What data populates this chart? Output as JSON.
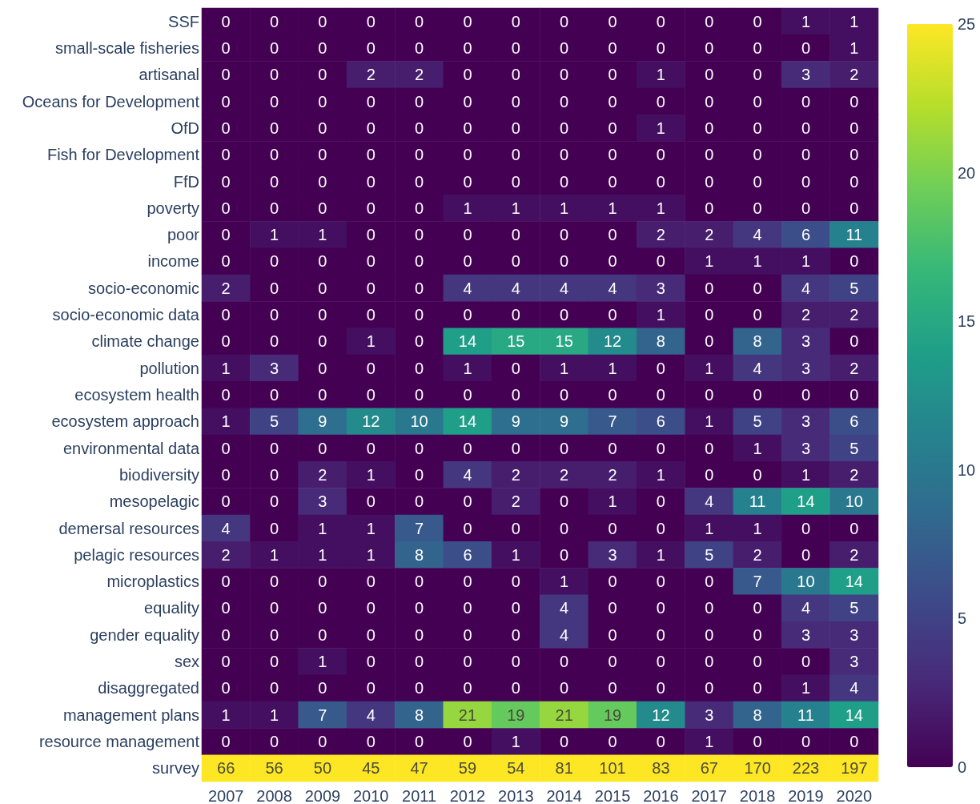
{
  "chart_data": {
    "type": "heatmap",
    "categories": [
      "2007",
      "2008",
      "2009",
      "2010",
      "2011",
      "2012",
      "2013",
      "2014",
      "2015",
      "2016",
      "2017",
      "2018",
      "2019",
      "2020"
    ],
    "y_categories": [
      "SSF",
      "small-scale fisheries",
      "artisanal",
      "Oceans for Development",
      "OfD",
      "Fish for Development",
      "FfD",
      "poverty",
      "poor",
      "income",
      "socio-economic",
      "socio-economic data",
      "climate change",
      "pollution",
      "ecosystem health",
      "ecosystem approach",
      "environmental data",
      "biodiversity",
      "mesopelagic",
      "demersal resources",
      "pelagic resources",
      "microplastics",
      "equality",
      "gender equality",
      "sex",
      "disaggregated",
      "management plans",
      "resource management",
      "survey"
    ],
    "cells": [
      [
        0,
        0,
        0,
        0,
        0,
        0,
        0,
        0,
        0,
        0,
        0,
        0,
        1,
        1
      ],
      [
        0,
        0,
        0,
        0,
        0,
        0,
        0,
        0,
        0,
        0,
        0,
        0,
        0,
        1
      ],
      [
        0,
        0,
        0,
        2,
        2,
        0,
        0,
        0,
        0,
        1,
        0,
        0,
        3,
        2
      ],
      [
        0,
        0,
        0,
        0,
        0,
        0,
        0,
        0,
        0,
        0,
        0,
        0,
        0,
        0
      ],
      [
        0,
        0,
        0,
        0,
        0,
        0,
        0,
        0,
        0,
        1,
        0,
        0,
        0,
        0
      ],
      [
        0,
        0,
        0,
        0,
        0,
        0,
        0,
        0,
        0,
        0,
        0,
        0,
        0,
        0
      ],
      [
        0,
        0,
        0,
        0,
        0,
        0,
        0,
        0,
        0,
        0,
        0,
        0,
        0,
        0
      ],
      [
        0,
        0,
        0,
        0,
        0,
        1,
        1,
        1,
        1,
        1,
        0,
        0,
        0,
        0
      ],
      [
        0,
        1,
        1,
        0,
        0,
        0,
        0,
        0,
        0,
        2,
        2,
        4,
        6,
        11
      ],
      [
        0,
        0,
        0,
        0,
        0,
        0,
        0,
        0,
        0,
        0,
        1,
        1,
        1,
        0
      ],
      [
        2,
        0,
        0,
        0,
        0,
        4,
        4,
        4,
        4,
        3,
        0,
        0,
        4,
        5
      ],
      [
        0,
        0,
        0,
        0,
        0,
        0,
        0,
        0,
        0,
        1,
        0,
        0,
        2,
        2
      ],
      [
        0,
        0,
        0,
        1,
        0,
        14,
        15,
        15,
        12,
        8,
        0,
        8,
        3,
        0
      ],
      [
        1,
        3,
        0,
        0,
        0,
        1,
        0,
        1,
        1,
        0,
        1,
        4,
        3,
        2
      ],
      [
        0,
        0,
        0,
        0,
        0,
        0,
        0,
        0,
        0,
        0,
        0,
        0,
        0,
        0
      ],
      [
        1,
        5,
        9,
        12,
        10,
        14,
        9,
        9,
        7,
        6,
        1,
        5,
        3,
        6
      ],
      [
        0,
        0,
        0,
        0,
        0,
        0,
        0,
        0,
        0,
        0,
        0,
        1,
        3,
        5
      ],
      [
        0,
        0,
        2,
        1,
        0,
        4,
        2,
        2,
        2,
        1,
        0,
        0,
        1,
        2
      ],
      [
        0,
        0,
        3,
        0,
        0,
        0,
        2,
        0,
        1,
        0,
        4,
        11,
        14,
        10
      ],
      [
        4,
        0,
        1,
        1,
        7,
        0,
        0,
        0,
        0,
        0,
        1,
        1,
        0,
        0
      ],
      [
        2,
        1,
        1,
        1,
        8,
        6,
        1,
        0,
        3,
        1,
        5,
        2,
        0,
        2
      ],
      [
        0,
        0,
        0,
        0,
        0,
        0,
        0,
        1,
        0,
        0,
        0,
        7,
        10,
        14
      ],
      [
        0,
        0,
        0,
        0,
        0,
        0,
        0,
        4,
        0,
        0,
        0,
        0,
        4,
        5
      ],
      [
        0,
        0,
        0,
        0,
        0,
        0,
        0,
        4,
        0,
        0,
        0,
        0,
        3,
        3
      ],
      [
        0,
        0,
        1,
        0,
        0,
        0,
        0,
        0,
        0,
        0,
        0,
        0,
        0,
        3
      ],
      [
        0,
        0,
        0,
        0,
        0,
        0,
        0,
        0,
        0,
        0,
        0,
        0,
        1,
        4
      ],
      [
        1,
        1,
        7,
        4,
        8,
        21,
        19,
        21,
        19,
        12,
        3,
        8,
        11,
        14
      ],
      [
        0,
        0,
        0,
        0,
        0,
        0,
        1,
        0,
        0,
        0,
        1,
        0,
        0,
        0
      ],
      [
        66,
        56,
        50,
        45,
        47,
        59,
        54,
        81,
        101,
        83,
        67,
        170,
        223,
        197
      ]
    ],
    "clim": [
      0,
      25
    ],
    "cticks": [
      0,
      5,
      10,
      15,
      20,
      25
    ],
    "data_labels": true
  }
}
